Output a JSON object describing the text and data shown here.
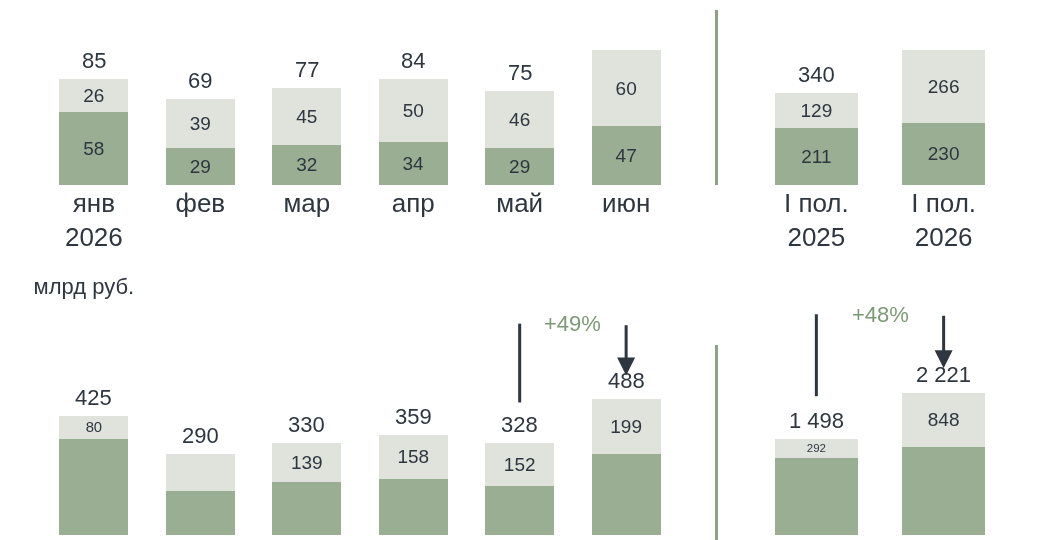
{
  "chart_data": [
    {
      "type": "bar",
      "stacked": true,
      "data_labels": true,
      "categories": [
        "янв\n2026",
        "фев",
        "мар",
        "апр",
        "май",
        "июн"
      ],
      "series": [
        {
          "color": "#9aae93",
          "values": [
            58,
            29,
            32,
            34,
            29,
            47
          ]
        },
        {
          "color": "#dfe3dc",
          "values": [
            26,
            39,
            45,
            50,
            46,
            60
          ]
        }
      ],
      "totals": [
        "85",
        "69",
        "77",
        "84",
        "75",
        null
      ]
    },
    {
      "type": "bar",
      "stacked": true,
      "data_labels": true,
      "categories": [
        "I пол.\n2025",
        "I пол.\n2026"
      ],
      "series": [
        {
          "color": "#9aae93",
          "values": [
            211,
            230
          ]
        },
        {
          "color": "#dfe3dc",
          "values": [
            129,
            266
          ]
        }
      ],
      "totals": [
        "340",
        null
      ]
    },
    {
      "type": "bar",
      "stacked": true,
      "subtitle": "млрд руб.",
      "categories": [
        null,
        null,
        null,
        null,
        null,
        null
      ],
      "series": [
        {
          "color": "#9aae93",
          "values": [
            345,
            159,
            191,
            201,
            176,
            289
          ],
          "value_labels": [
            null,
            null,
            null,
            null,
            null,
            null
          ]
        },
        {
          "color": "#dfe3dc",
          "values": [
            80,
            131,
            139,
            158,
            152,
            199
          ],
          "value_labels": [
            "80",
            null,
            "139",
            "158",
            "152",
            "199"
          ]
        }
      ],
      "totals": [
        "425",
        "290",
        "330",
        "359",
        "328",
        "488"
      ],
      "annotations": [
        "+49%"
      ]
    },
    {
      "type": "bar",
      "stacked": true,
      "categories": [
        null,
        null
      ],
      "series": [
        {
          "color": "#9aae93",
          "values": [
            1206,
            1373
          ],
          "value_labels": [
            null,
            null
          ]
        },
        {
          "color": "#dfe3dc",
          "values": [
            292,
            848
          ],
          "value_labels": [
            "292",
            "848"
          ]
        }
      ],
      "totals": [
        "1 498",
        "2 221"
      ],
      "annotations": [
        "+48%"
      ]
    }
  ]
}
